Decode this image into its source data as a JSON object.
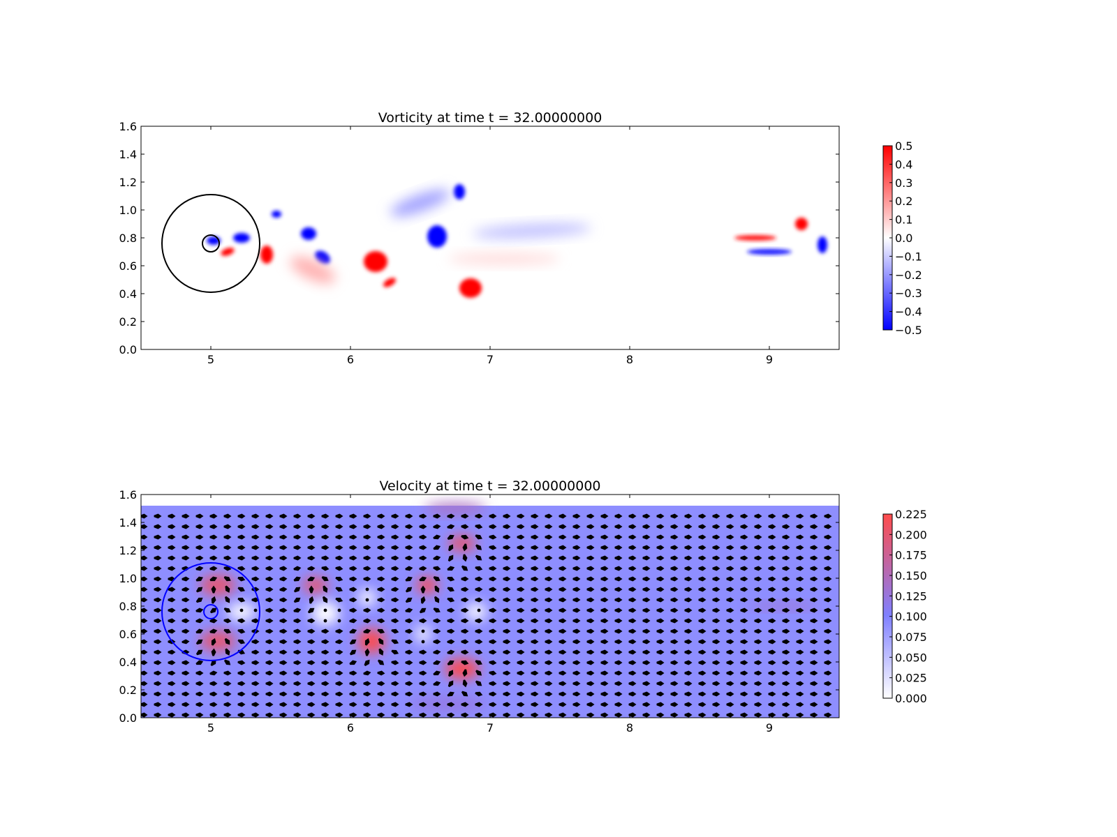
{
  "chart_data": [
    {
      "type": "heatmap",
      "title": "Vorticity at time t =    32.00000000",
      "xlabel": "",
      "ylabel": "",
      "xlim": [
        4.5,
        9.5
      ],
      "ylim": [
        0.0,
        1.6
      ],
      "xticks": [
        "5",
        "6",
        "7",
        "8",
        "9"
      ],
      "yticks": [
        "0.0",
        "0.2",
        "0.4",
        "0.6",
        "0.8",
        "1.0",
        "1.2",
        "1.4",
        "1.6"
      ],
      "colormap": {
        "low": "#0000ff",
        "mid": "#ffffff",
        "high": "#ff0000"
      },
      "clim": [
        -0.5,
        0.5
      ],
      "colorbar_ticks": [
        "0.5",
        "0.4",
        "0.3",
        "0.2",
        "0.1",
        "0.0",
        "−0.1",
        "−0.2",
        "−0.3",
        "−0.4",
        "−0.5"
      ],
      "grid": false,
      "overlay_circles": [
        {
          "cx": 5.0,
          "cy": 0.76,
          "r": 0.35,
          "color": "#000000"
        },
        {
          "cx": 5.0,
          "cy": 0.76,
          "r": 0.06,
          "color": "#000000"
        }
      ],
      "vortices": [
        {
          "x": 5.02,
          "y": 0.78,
          "w": 0.1,
          "h": 0.06,
          "value": -0.5,
          "angle": 0
        },
        {
          "x": 5.22,
          "y": 0.8,
          "w": 0.12,
          "h": 0.07,
          "value": -0.5,
          "angle": 0
        },
        {
          "x": 5.12,
          "y": 0.7,
          "w": 0.1,
          "h": 0.05,
          "value": 0.5,
          "angle": -20
        },
        {
          "x": 5.4,
          "y": 0.68,
          "w": 0.09,
          "h": 0.13,
          "value": 0.5,
          "angle": 0
        },
        {
          "x": 5.47,
          "y": 0.97,
          "w": 0.07,
          "h": 0.05,
          "value": -0.5,
          "angle": 0
        },
        {
          "x": 5.7,
          "y": 0.83,
          "w": 0.11,
          "h": 0.09,
          "value": -0.5,
          "angle": 0
        },
        {
          "x": 5.8,
          "y": 0.66,
          "w": 0.12,
          "h": 0.08,
          "value": -0.5,
          "angle": 35
        },
        {
          "x": 5.73,
          "y": 0.57,
          "w": 0.35,
          "h": 0.14,
          "value": 0.15,
          "angle": 25
        },
        {
          "x": 6.18,
          "y": 0.63,
          "w": 0.17,
          "h": 0.15,
          "value": 0.5,
          "angle": 0
        },
        {
          "x": 6.28,
          "y": 0.48,
          "w": 0.1,
          "h": 0.05,
          "value": 0.5,
          "angle": -30
        },
        {
          "x": 6.62,
          "y": 0.81,
          "w": 0.14,
          "h": 0.16,
          "value": -0.5,
          "angle": 0
        },
        {
          "x": 6.78,
          "y": 1.13,
          "w": 0.08,
          "h": 0.11,
          "value": -0.5,
          "angle": 0
        },
        {
          "x": 6.86,
          "y": 0.44,
          "w": 0.16,
          "h": 0.14,
          "value": 0.5,
          "angle": 0
        },
        {
          "x": 6.5,
          "y": 1.05,
          "w": 0.45,
          "h": 0.12,
          "value": -0.18,
          "angle": -20
        },
        {
          "x": 7.3,
          "y": 0.85,
          "w": 0.85,
          "h": 0.1,
          "value": -0.12,
          "angle": -3
        },
        {
          "x": 7.1,
          "y": 0.65,
          "w": 0.8,
          "h": 0.08,
          "value": 0.07,
          "angle": 0
        },
        {
          "x": 8.9,
          "y": 0.8,
          "w": 0.3,
          "h": 0.04,
          "value": 0.45,
          "angle": 0
        },
        {
          "x": 9.0,
          "y": 0.7,
          "w": 0.32,
          "h": 0.04,
          "value": -0.45,
          "angle": 0
        },
        {
          "x": 9.23,
          "y": 0.9,
          "w": 0.09,
          "h": 0.09,
          "value": 0.5,
          "angle": 0
        },
        {
          "x": 9.38,
          "y": 0.75,
          "w": 0.07,
          "h": 0.12,
          "value": -0.5,
          "angle": 0
        }
      ]
    },
    {
      "type": "heatmap",
      "title": "Velocity at time t =    32.00000000",
      "xlabel": "",
      "ylabel": "",
      "xlim": [
        4.5,
        9.5
      ],
      "ylim": [
        0.0,
        1.6
      ],
      "data_ymax": 1.52,
      "xticks": [
        "5",
        "6",
        "7",
        "8",
        "9"
      ],
      "yticks": [
        "0.0",
        "0.2",
        "0.4",
        "0.6",
        "0.8",
        "1.0",
        "1.2",
        "1.4",
        "1.6"
      ],
      "colormap": {
        "low": "#ffffff",
        "mid": "#8080ff",
        "high": "#ff4c4c"
      },
      "clim": [
        0.0,
        0.225
      ],
      "background_value": 0.1,
      "colorbar_ticks": [
        "0.225",
        "0.200",
        "0.175",
        "0.150",
        "0.125",
        "0.100",
        "0.075",
        "0.050",
        "0.025",
        "0.000"
      ],
      "grid": false,
      "quiver": true,
      "overlay_circles": [
        {
          "cx": 5.0,
          "cy": 0.76,
          "r": 0.35,
          "color": "#0000ff"
        },
        {
          "cx": 5.0,
          "cy": 0.76,
          "r": 0.05,
          "color": "#0000ff"
        }
      ],
      "hotspots": [
        {
          "x": 5.05,
          "y": 0.95,
          "w": 0.25,
          "h": 0.15,
          "value": 0.2
        },
        {
          "x": 5.05,
          "y": 0.55,
          "w": 0.25,
          "h": 0.15,
          "value": 0.2
        },
        {
          "x": 5.75,
          "y": 0.95,
          "w": 0.18,
          "h": 0.12,
          "value": 0.2
        },
        {
          "x": 6.15,
          "y": 0.55,
          "w": 0.2,
          "h": 0.18,
          "value": 0.22
        },
        {
          "x": 6.55,
          "y": 0.95,
          "w": 0.15,
          "h": 0.12,
          "value": 0.22
        },
        {
          "x": 6.8,
          "y": 1.25,
          "w": 0.2,
          "h": 0.12,
          "value": 0.2
        },
        {
          "x": 6.8,
          "y": 0.35,
          "w": 0.25,
          "h": 0.15,
          "value": 0.22
        },
        {
          "x": 6.75,
          "y": 1.5,
          "w": 0.45,
          "h": 0.08,
          "value": 0.15
        },
        {
          "x": 6.7,
          "y": 0.1,
          "w": 0.55,
          "h": 0.1,
          "value": 0.13
        },
        {
          "x": 9.1,
          "y": 0.8,
          "w": 0.5,
          "h": 0.05,
          "value": 0.14
        }
      ],
      "slow_regions": [
        {
          "x": 5.22,
          "y": 0.76,
          "w": 0.2,
          "h": 0.12,
          "value": 0.0
        },
        {
          "x": 5.82,
          "y": 0.75,
          "w": 0.2,
          "h": 0.17,
          "value": 0.0
        },
        {
          "x": 6.12,
          "y": 0.86,
          "w": 0.12,
          "h": 0.12,
          "value": 0.0
        },
        {
          "x": 6.52,
          "y": 0.6,
          "w": 0.1,
          "h": 0.12,
          "value": 0.0
        },
        {
          "x": 6.9,
          "y": 0.76,
          "w": 0.15,
          "h": 0.12,
          "value": 0.0
        }
      ]
    }
  ]
}
